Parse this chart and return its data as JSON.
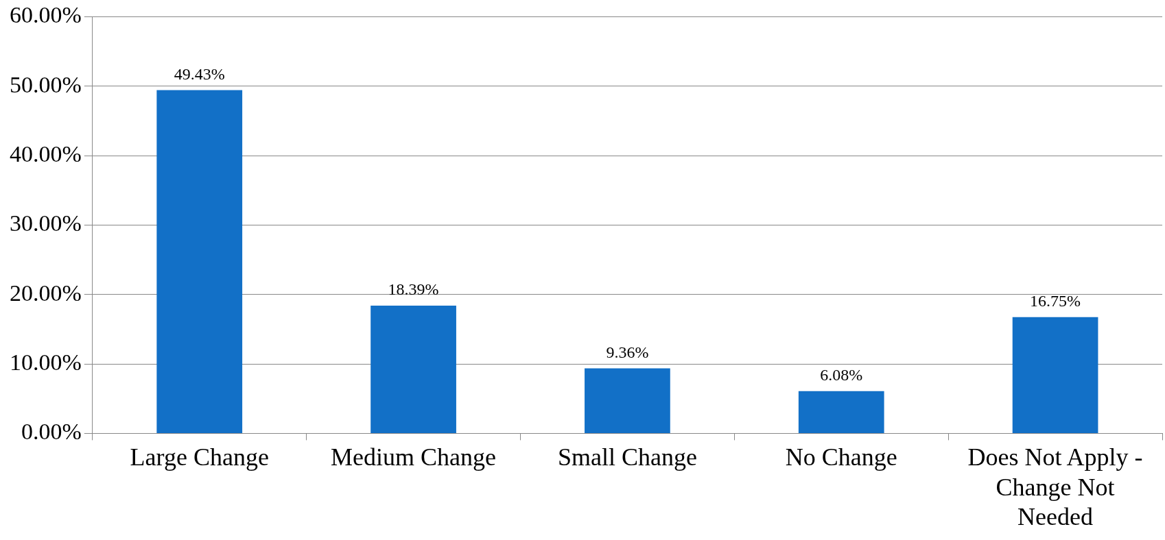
{
  "chart_data": {
    "type": "bar",
    "categories": [
      "Large Change",
      "Medium Change",
      "Small Change",
      "No Change",
      "Does Not Apply - Change Not Needed"
    ],
    "values": [
      49.43,
      18.39,
      9.36,
      6.08,
      16.75
    ],
    "value_labels": [
      "49.43%",
      "18.39%",
      "9.36%",
      "6.08%",
      "16.75%"
    ],
    "color": "#1270c7",
    "ylim": [
      0,
      60
    ],
    "yticks": [
      {
        "value": 0,
        "label": "0.00%"
      },
      {
        "value": 10,
        "label": "10.00%"
      },
      {
        "value": 20,
        "label": "20.00%"
      },
      {
        "value": 30,
        "label": "30.00%"
      },
      {
        "value": 40,
        "label": "40.00%"
      },
      {
        "value": 50,
        "label": "50.00%"
      },
      {
        "value": 60,
        "label": "60.00%"
      }
    ],
    "grid": "y",
    "legend": false
  }
}
